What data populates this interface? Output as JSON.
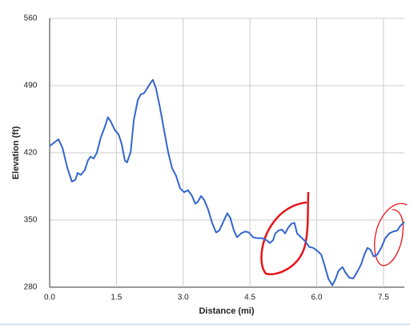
{
  "chart_data": {
    "type": "line",
    "x_label": "Distance (mi)",
    "y_label": "Elevation (ft)",
    "color": "#3366cc",
    "grid": true,
    "xlim": [
      0,
      7.97
    ],
    "ylim": [
      280,
      560
    ],
    "xticks": [
      {
        "value": 0,
        "label": "0.0"
      },
      1.5,
      {
        "value": 3,
        "label": "3.0"
      },
      4.5,
      {
        "value": 6,
        "label": "6.0"
      },
      7.5
    ],
    "yticks": [
      560,
      490,
      420,
      350,
      280
    ],
    "x": [
      0,
      0.11,
      0.2,
      0.29,
      0.4,
      0.5,
      0.58,
      0.63,
      0.7,
      0.79,
      0.86,
      0.92,
      0.99,
      1.06,
      1.15,
      1.24,
      1.31,
      1.38,
      1.46,
      1.55,
      1.62,
      1.69,
      1.74,
      1.82,
      1.89,
      1.98,
      2.05,
      2.12,
      2.19,
      2.27,
      2.32,
      2.39,
      2.48,
      2.57,
      2.66,
      2.75,
      2.84,
      2.93,
      3.02,
      3.11,
      3.2,
      3.27,
      3.33,
      3.4,
      3.47,
      3.56,
      3.65,
      3.74,
      3.81,
      3.9,
      3.99,
      4.06,
      4.14,
      4.21,
      4.3,
      4.39,
      4.48,
      4.57,
      4.68,
      4.78,
      4.87,
      4.95,
      5.02,
      5.07,
      5.14,
      5.22,
      5.29,
      5.36,
      5.43,
      5.5,
      5.56,
      5.65,
      5.74,
      5.83,
      5.92,
      6.01,
      6.1,
      6.17,
      6.26,
      6.35,
      6.42,
      6.49,
      6.58,
      6.65,
      6.73,
      6.82,
      6.91,
      7.0,
      7.07,
      7.14,
      7.21,
      7.28,
      7.36,
      7.45,
      7.54,
      7.63,
      7.72,
      7.81,
      7.88,
      7.97
    ],
    "values": [
      427,
      431,
      434,
      425,
      404,
      390,
      392,
      399,
      397,
      402,
      412,
      416,
      414,
      420,
      436,
      447,
      457,
      452,
      444,
      439,
      429,
      412,
      410,
      421,
      454,
      475,
      481,
      482,
      487,
      493,
      496,
      487,
      467,
      444,
      421,
      404,
      396,
      383,
      379,
      381,
      375,
      367,
      369,
      375,
      371,
      361,
      347,
      337,
      339,
      348,
      357,
      352,
      339,
      332,
      336,
      338,
      337,
      332,
      331,
      331,
      329,
      326,
      329,
      336,
      339,
      340,
      336,
      342,
      346,
      347,
      336,
      332,
      328,
      322,
      321,
      318,
      314,
      304,
      289,
      282,
      288,
      297,
      301,
      295,
      290,
      289,
      296,
      304,
      314,
      321,
      319,
      312,
      314,
      321,
      331,
      336,
      338,
      339,
      344,
      348
    ]
  }
}
